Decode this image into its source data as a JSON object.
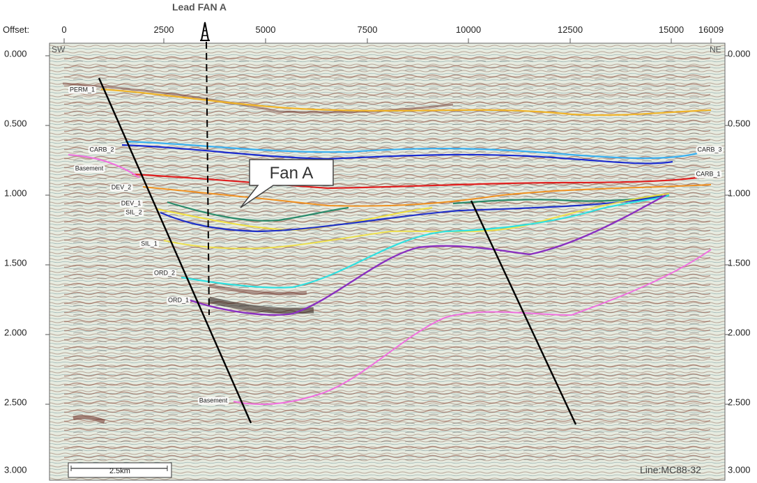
{
  "title": "Lead FAN A",
  "x_axis": {
    "label": "Offset:",
    "ticks": [
      {
        "label": "0",
        "value": 0
      },
      {
        "label": "2500",
        "value": 2500
      },
      {
        "label": "5000",
        "value": 5000
      },
      {
        "label": "7500",
        "value": 7500
      },
      {
        "label": "10000",
        "value": 10000
      },
      {
        "label": "12500",
        "value": 12500
      },
      {
        "label": "15000",
        "value": 15000
      },
      {
        "label": "16009",
        "value": 16009
      }
    ]
  },
  "y_axis": {
    "ticks": [
      "0.000",
      "0.500",
      "1.000",
      "1.500",
      "2.000",
      "2.500",
      "3.000"
    ]
  },
  "corners": {
    "left": "SW",
    "right": "NE"
  },
  "callout": "Fan A",
  "horizon_labels": {
    "perm_1": "PERM_1",
    "carb_2": "CARB_2",
    "basement_top": "Basement",
    "dev_2": "DEV_2",
    "dev_1": "DEV_1",
    "sil_2": "SIL_2",
    "sil_1": "SIL_1",
    "ord_2": "ORD_2",
    "ord_1": "ORD_1",
    "basement_bottom": "Basement",
    "carb_3": "CARB_3",
    "carb_1": "CARB_1"
  },
  "scale_bar": "2.5km",
  "line_name": "Line:MC88-32",
  "colors": {
    "perm_1": "#f0b429",
    "carb_3": "#3ab0f0",
    "carb_2": "#1a2ad0",
    "red": "#e02020",
    "orange": "#f09020",
    "green": "#2a8a6a",
    "yellow": "#f0e040",
    "sil_blue": "#2030c8",
    "cyan": "#30e0e0",
    "purple": "#8a30c0",
    "magenta": "#e040e0",
    "basement_pink": "#f070e0"
  }
}
